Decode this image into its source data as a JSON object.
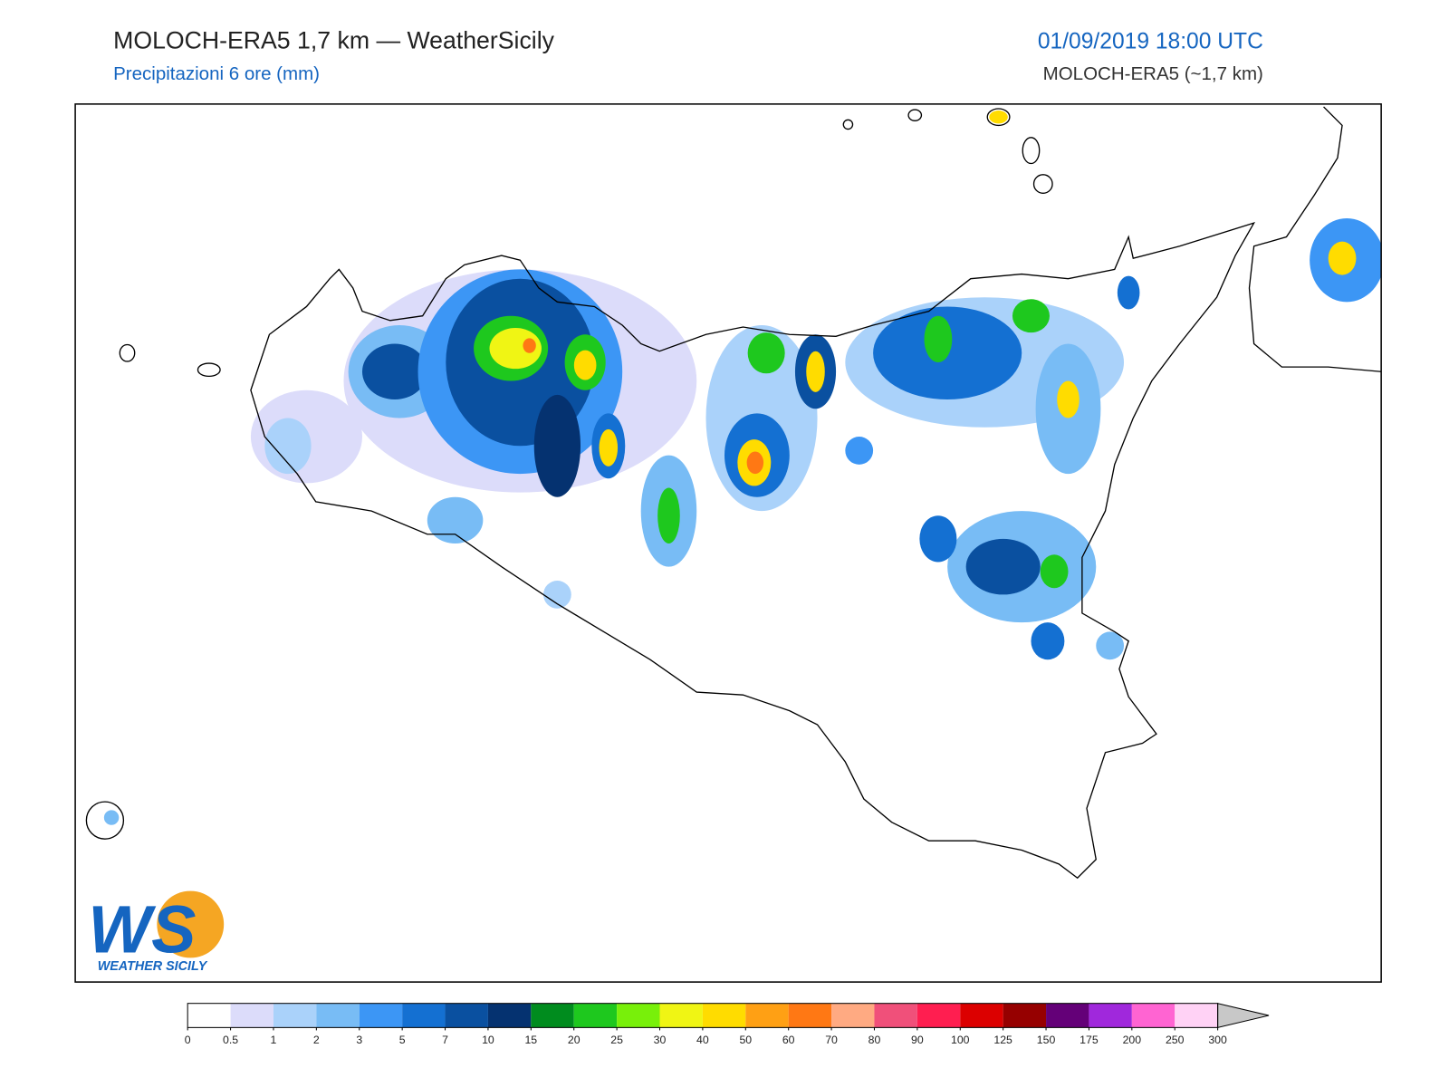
{
  "header": {
    "title": "MOLOCH-ERA5 1,7 km — WeatherSicily",
    "subtitle": "Precipitazioni 6 ore (mm)",
    "datetime": "01/09/2019 18:00 UTC",
    "model": "MOLOCH-ERA5 (~1,7 km)"
  },
  "logo": {
    "mark": "WS",
    "text": "WEATHER SICILY"
  },
  "colorbar": {
    "bounds": [
      0,
      0.5,
      1,
      2,
      3,
      5,
      7,
      10,
      15,
      20,
      25,
      30,
      40,
      50,
      60,
      70,
      80,
      90,
      100,
      125,
      150,
      175,
      200,
      250,
      300
    ],
    "colors": [
      "#ffffff",
      "#dcdcfa",
      "#aad2fa",
      "#78bcf5",
      "#3c96f5",
      "#1470d2",
      "#0a50a0",
      "#053270",
      "#008c1e",
      "#1ec81e",
      "#78f00a",
      "#f0f514",
      "#ffdc00",
      "#ffa014",
      "#ff7814",
      "#ffaa82",
      "#f0507a",
      "#ff1e50",
      "#dc0000",
      "#960000",
      "#640078",
      "#a028dc",
      "#ff64d2",
      "#ffd2f5"
    ],
    "extend_color": "#c8c8c8"
  }
}
